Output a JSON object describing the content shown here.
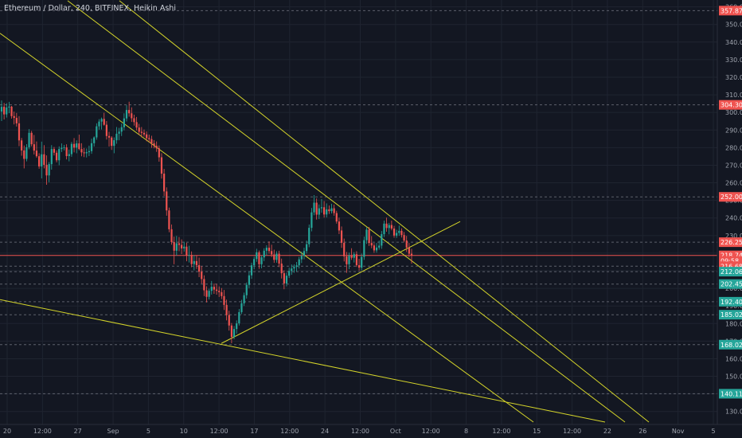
{
  "title": "Ethereum / Dollar, 240, BITFINEX, Heikin Ashi",
  "chart_data": {
    "type": "candlestick",
    "title": "Ethereum / Dollar, 240, BITFINEX, Heikin Ashi",
    "ylim": [
      124,
      363
    ],
    "y_ticks": [
      130,
      140,
      150,
      160,
      170,
      180,
      190,
      200,
      210,
      220,
      230,
      240,
      250,
      260,
      270,
      280,
      290,
      300,
      310,
      320,
      330,
      340,
      350,
      360
    ],
    "x_ticks": [
      "20",
      "12:00",
      "27",
      "Sep",
      "5",
      "10",
      "12:00",
      "17",
      "12:00",
      "24",
      "12:00",
      "Oct",
      "12:00",
      "8",
      "12:00",
      "15",
      "12:00",
      "22",
      "26",
      "Nov",
      "5"
    ],
    "grid": true,
    "colors": {
      "background": "#131722",
      "up": "#26a69a",
      "down": "#ef5350",
      "trendline": "#d4d42a",
      "grid": "#1f2430",
      "level_line": "#5d606b",
      "current_line": "#ef5350"
    },
    "price_levels": [
      {
        "label": "357.87",
        "value": 357.87,
        "color": "#ef5350"
      },
      {
        "label": "304.30",
        "value": 304.3,
        "color": "#ef5350"
      },
      {
        "label": "252.00",
        "value": 252.0,
        "color": "#ef5350"
      },
      {
        "label": "226.25",
        "value": 226.25,
        "color": "#ef5350"
      },
      {
        "label": "218.74",
        "value": 218.74,
        "color": "#ef5350",
        "current": true
      },
      {
        "label": "09:58",
        "value": 215.6,
        "color": "#ef5350",
        "text_only": true
      },
      {
        "label": "216.68",
        "value": 212.6,
        "color": "#ef5350"
      },
      {
        "label": "212.06",
        "value": 209.5,
        "color": "#26a69a"
      },
      {
        "label": "202.45",
        "value": 202.45,
        "color": "#26a69a"
      },
      {
        "label": "192.40",
        "value": 192.4,
        "color": "#26a69a"
      },
      {
        "label": "185.02",
        "value": 185.02,
        "color": "#26a69a"
      },
      {
        "label": "168.02",
        "value": 168.02,
        "color": "#26a69a"
      },
      {
        "label": "140.11",
        "value": 140.11,
        "color": "#26a69a"
      }
    ],
    "candles": [
      {
        "o": 300.5,
        "h": 306.8,
        "l": 295.1,
        "c": 303.2
      },
      {
        "o": 303.2,
        "h": 305.4,
        "l": 296.0,
        "c": 298.9
      },
      {
        "o": 298.9,
        "h": 305.2,
        "l": 297.1,
        "c": 302.8
      },
      {
        "o": 302.8,
        "h": 306.0,
        "l": 299.6,
        "c": 303.3
      },
      {
        "o": 303.3,
        "h": 303.7,
        "l": 296.5,
        "c": 297.9
      },
      {
        "o": 297.9,
        "h": 300.5,
        "l": 293.2,
        "c": 296.9
      },
      {
        "o": 296.9,
        "h": 299.7,
        "l": 292.0,
        "c": 293.8
      },
      {
        "o": 293.8,
        "h": 297.9,
        "l": 280.8,
        "c": 284.1
      },
      {
        "o": 284.1,
        "h": 285.5,
        "l": 275.4,
        "c": 278.4
      },
      {
        "o": 278.4,
        "h": 281.2,
        "l": 268.2,
        "c": 273.6
      },
      {
        "o": 273.6,
        "h": 282.0,
        "l": 272.2,
        "c": 280.2
      },
      {
        "o": 280.2,
        "h": 290.5,
        "l": 279.1,
        "c": 288.4
      },
      {
        "o": 288.4,
        "h": 289.5,
        "l": 280.7,
        "c": 281.9
      },
      {
        "o": 281.9,
        "h": 287.2,
        "l": 276.1,
        "c": 278.3
      },
      {
        "o": 278.3,
        "h": 283.5,
        "l": 274.2,
        "c": 275.1
      },
      {
        "o": 275.1,
        "h": 276.8,
        "l": 268.0,
        "c": 269.3
      },
      {
        "o": 269.3,
        "h": 283.4,
        "l": 262.5,
        "c": 276.2
      },
      {
        "o": 276.2,
        "h": 281.4,
        "l": 268.2,
        "c": 270.2
      },
      {
        "o": 270.2,
        "h": 275.6,
        "l": 258.9,
        "c": 264.2
      },
      {
        "o": 264.2,
        "h": 271.8,
        "l": 260.3,
        "c": 270.6
      },
      {
        "o": 270.6,
        "h": 281.4,
        "l": 267.5,
        "c": 279.2
      },
      {
        "o": 279.2,
        "h": 280.4,
        "l": 275.5,
        "c": 277.1
      },
      {
        "o": 277.1,
        "h": 278.4,
        "l": 271.6,
        "c": 272.8
      },
      {
        "o": 272.8,
        "h": 280.7,
        "l": 270.0,
        "c": 279.2
      },
      {
        "o": 279.2,
        "h": 282.4,
        "l": 277.5,
        "c": 279.9
      },
      {
        "o": 279.9,
        "h": 281.5,
        "l": 278.4,
        "c": 280.1
      },
      {
        "o": 280.1,
        "h": 281.9,
        "l": 273.3,
        "c": 275.2
      },
      {
        "o": 275.2,
        "h": 278.9,
        "l": 272.2,
        "c": 276.3
      },
      {
        "o": 276.3,
        "h": 283.2,
        "l": 274.8,
        "c": 282.1
      },
      {
        "o": 282.1,
        "h": 285.4,
        "l": 277.3,
        "c": 280.0
      },
      {
        "o": 280.0,
        "h": 284.1,
        "l": 276.8,
        "c": 282.4
      },
      {
        "o": 282.4,
        "h": 287.4,
        "l": 278.5,
        "c": 279.2
      },
      {
        "o": 279.2,
        "h": 282.5,
        "l": 275.1,
        "c": 277.3
      },
      {
        "o": 277.3,
        "h": 279.8,
        "l": 274.6,
        "c": 276.8
      },
      {
        "o": 276.8,
        "h": 279.5,
        "l": 274.4,
        "c": 277.4
      },
      {
        "o": 277.4,
        "h": 281.1,
        "l": 275.2,
        "c": 278.0
      },
      {
        "o": 278.0,
        "h": 285.1,
        "l": 276.5,
        "c": 282.5
      },
      {
        "o": 282.5,
        "h": 286.4,
        "l": 280.6,
        "c": 285.8
      },
      {
        "o": 285.8,
        "h": 293.8,
        "l": 284.5,
        "c": 292.1
      },
      {
        "o": 292.1,
        "h": 296.2,
        "l": 290.2,
        "c": 294.8
      },
      {
        "o": 294.8,
        "h": 297.1,
        "l": 290.3,
        "c": 296.3
      },
      {
        "o": 296.3,
        "h": 299.8,
        "l": 292.5,
        "c": 293.0
      },
      {
        "o": 293.0,
        "h": 295.1,
        "l": 284.6,
        "c": 286.6
      },
      {
        "o": 286.6,
        "h": 289.0,
        "l": 280.6,
        "c": 285.7
      },
      {
        "o": 285.7,
        "h": 286.5,
        "l": 278.7,
        "c": 281.0
      },
      {
        "o": 281.0,
        "h": 285.8,
        "l": 276.8,
        "c": 284.2
      },
      {
        "o": 284.2,
        "h": 291.7,
        "l": 282.2,
        "c": 287.9
      },
      {
        "o": 287.9,
        "h": 291.2,
        "l": 284.2,
        "c": 289.1
      },
      {
        "o": 289.1,
        "h": 293.6,
        "l": 286.6,
        "c": 291.6
      },
      {
        "o": 291.6,
        "h": 299.5,
        "l": 289.8,
        "c": 296.6
      },
      {
        "o": 296.6,
        "h": 304.1,
        "l": 294.9,
        "c": 301.4
      },
      {
        "o": 301.4,
        "h": 306.1,
        "l": 297.6,
        "c": 299.5
      },
      {
        "o": 299.5,
        "h": 302.9,
        "l": 294.6,
        "c": 296.7
      },
      {
        "o": 296.7,
        "h": 298.7,
        "l": 292.5,
        "c": 294.5
      },
      {
        "o": 294.5,
        "h": 297.4,
        "l": 289.8,
        "c": 291.4
      },
      {
        "o": 291.4,
        "h": 293.5,
        "l": 287.2,
        "c": 289.0
      },
      {
        "o": 289.0,
        "h": 291.7,
        "l": 285.8,
        "c": 288.4
      },
      {
        "o": 288.4,
        "h": 290.3,
        "l": 286.2,
        "c": 287.5
      },
      {
        "o": 287.5,
        "h": 289.2,
        "l": 283.6,
        "c": 285.4
      },
      {
        "o": 285.4,
        "h": 287.4,
        "l": 282.9,
        "c": 284.8
      },
      {
        "o": 284.8,
        "h": 286.7,
        "l": 279.9,
        "c": 282.4
      },
      {
        "o": 282.4,
        "h": 284.3,
        "l": 279.6,
        "c": 281.0
      },
      {
        "o": 281.0,
        "h": 283.5,
        "l": 277.6,
        "c": 279.6
      },
      {
        "o": 279.6,
        "h": 281.2,
        "l": 272.0,
        "c": 274.5
      },
      {
        "o": 274.5,
        "h": 276.8,
        "l": 262.4,
        "c": 265.2
      },
      {
        "o": 265.2,
        "h": 267.9,
        "l": 252.5,
        "c": 255.1
      },
      {
        "o": 255.1,
        "h": 257.4,
        "l": 241.3,
        "c": 244.3
      },
      {
        "o": 244.3,
        "h": 245.9,
        "l": 231.9,
        "c": 233.6
      },
      {
        "o": 233.6,
        "h": 236.3,
        "l": 224.8,
        "c": 226.3
      },
      {
        "o": 226.3,
        "h": 229.4,
        "l": 213.7,
        "c": 221.4
      },
      {
        "o": 221.4,
        "h": 229.8,
        "l": 218.6,
        "c": 225.6
      },
      {
        "o": 225.6,
        "h": 229.2,
        "l": 221.1,
        "c": 224.7
      },
      {
        "o": 224.7,
        "h": 227.8,
        "l": 219.5,
        "c": 222.7
      },
      {
        "o": 222.7,
        "h": 226.5,
        "l": 220.9,
        "c": 223.7
      },
      {
        "o": 223.7,
        "h": 225.9,
        "l": 215.4,
        "c": 218.7
      },
      {
        "o": 218.7,
        "h": 224.2,
        "l": 214.7,
        "c": 219.0
      },
      {
        "o": 219.0,
        "h": 221.0,
        "l": 212.0,
        "c": 213.8
      },
      {
        "o": 213.8,
        "h": 218.8,
        "l": 210.3,
        "c": 215.5
      },
      {
        "o": 215.5,
        "h": 218.8,
        "l": 211.0,
        "c": 213.2
      },
      {
        "o": 213.2,
        "h": 217.5,
        "l": 206.4,
        "c": 209.5
      },
      {
        "o": 209.5,
        "h": 212.7,
        "l": 202.8,
        "c": 205.3
      },
      {
        "o": 205.3,
        "h": 207.4,
        "l": 195.6,
        "c": 198.9
      },
      {
        "o": 198.9,
        "h": 201.2,
        "l": 192.0,
        "c": 195.2
      },
      {
        "o": 195.2,
        "h": 199.8,
        "l": 193.7,
        "c": 198.6
      },
      {
        "o": 198.6,
        "h": 204.2,
        "l": 196.5,
        "c": 200.9
      },
      {
        "o": 200.9,
        "h": 202.8,
        "l": 196.9,
        "c": 199.3
      },
      {
        "o": 199.3,
        "h": 202.6,
        "l": 196.4,
        "c": 198.6
      },
      {
        "o": 198.6,
        "h": 201.1,
        "l": 195.1,
        "c": 197.8
      },
      {
        "o": 197.8,
        "h": 200.2,
        "l": 193.9,
        "c": 195.6
      },
      {
        "o": 195.6,
        "h": 199.1,
        "l": 187.7,
        "c": 190.6
      },
      {
        "o": 190.6,
        "h": 193.6,
        "l": 181.8,
        "c": 184.8
      },
      {
        "o": 184.8,
        "h": 187.3,
        "l": 176.0,
        "c": 178.9
      },
      {
        "o": 178.9,
        "h": 180.3,
        "l": 168.8,
        "c": 172.4
      },
      {
        "o": 172.4,
        "h": 178.6,
        "l": 171.0,
        "c": 176.9
      },
      {
        "o": 176.9,
        "h": 181.8,
        "l": 174.3,
        "c": 180.1
      },
      {
        "o": 180.1,
        "h": 188.3,
        "l": 178.9,
        "c": 186.5
      },
      {
        "o": 186.5,
        "h": 193.5,
        "l": 185.4,
        "c": 191.5
      },
      {
        "o": 191.5,
        "h": 197.6,
        "l": 190.0,
        "c": 196.1
      },
      {
        "o": 196.1,
        "h": 203.3,
        "l": 194.2,
        "c": 202.0
      },
      {
        "o": 202.0,
        "h": 209.7,
        "l": 200.1,
        "c": 207.4
      },
      {
        "o": 207.4,
        "h": 214.6,
        "l": 205.4,
        "c": 213.1
      },
      {
        "o": 213.1,
        "h": 218.0,
        "l": 210.9,
        "c": 216.7
      },
      {
        "o": 216.7,
        "h": 222.5,
        "l": 215.1,
        "c": 220.5
      },
      {
        "o": 220.5,
        "h": 221.5,
        "l": 211.1,
        "c": 213.7
      },
      {
        "o": 213.7,
        "h": 218.6,
        "l": 211.4,
        "c": 217.6
      },
      {
        "o": 217.6,
        "h": 222.8,
        "l": 215.5,
        "c": 221.4
      },
      {
        "o": 221.4,
        "h": 224.5,
        "l": 218.9,
        "c": 223.1
      },
      {
        "o": 223.1,
        "h": 226.7,
        "l": 219.7,
        "c": 221.2
      },
      {
        "o": 221.2,
        "h": 224.8,
        "l": 217.8,
        "c": 219.3
      },
      {
        "o": 219.3,
        "h": 222.0,
        "l": 214.5,
        "c": 216.2
      },
      {
        "o": 216.2,
        "h": 221.1,
        "l": 214.6,
        "c": 219.7
      },
      {
        "o": 219.7,
        "h": 221.4,
        "l": 212.1,
        "c": 214.1
      },
      {
        "o": 214.1,
        "h": 216.9,
        "l": 205.6,
        "c": 208.6
      },
      {
        "o": 208.6,
        "h": 210.3,
        "l": 199.5,
        "c": 202.8
      },
      {
        "o": 202.8,
        "h": 208.9,
        "l": 201.1,
        "c": 207.2
      },
      {
        "o": 207.2,
        "h": 211.7,
        "l": 205.9,
        "c": 209.9
      },
      {
        "o": 209.9,
        "h": 213.6,
        "l": 207.7,
        "c": 211.3
      },
      {
        "o": 211.3,
        "h": 213.6,
        "l": 208.9,
        "c": 212.2
      },
      {
        "o": 212.2,
        "h": 215.0,
        "l": 209.6,
        "c": 213.1
      },
      {
        "o": 213.1,
        "h": 217.9,
        "l": 211.3,
        "c": 216.5
      },
      {
        "o": 216.5,
        "h": 220.9,
        "l": 214.4,
        "c": 218.5
      },
      {
        "o": 218.5,
        "h": 223.1,
        "l": 216.5,
        "c": 221.2
      },
      {
        "o": 221.2,
        "h": 227.2,
        "l": 219.8,
        "c": 225.1
      },
      {
        "o": 225.1,
        "h": 236.3,
        "l": 223.4,
        "c": 234.4
      },
      {
        "o": 234.4,
        "h": 245.7,
        "l": 232.4,
        "c": 243.2
      },
      {
        "o": 243.2,
        "h": 253.0,
        "l": 241.6,
        "c": 248.7
      },
      {
        "o": 248.7,
        "h": 251.1,
        "l": 239.1,
        "c": 241.9
      },
      {
        "o": 241.9,
        "h": 247.7,
        "l": 239.4,
        "c": 245.5
      },
      {
        "o": 245.5,
        "h": 250.8,
        "l": 243.0,
        "c": 246.1
      },
      {
        "o": 246.1,
        "h": 249.6,
        "l": 240.2,
        "c": 242.0
      },
      {
        "o": 242.0,
        "h": 248.3,
        "l": 240.3,
        "c": 244.9
      },
      {
        "o": 244.9,
        "h": 247.1,
        "l": 242.3,
        "c": 243.9
      },
      {
        "o": 243.9,
        "h": 248.1,
        "l": 242.6,
        "c": 245.5
      },
      {
        "o": 245.5,
        "h": 247.6,
        "l": 241.3,
        "c": 242.8
      },
      {
        "o": 242.8,
        "h": 244.1,
        "l": 236.8,
        "c": 238.0
      },
      {
        "o": 238.0,
        "h": 240.2,
        "l": 230.8,
        "c": 232.9
      },
      {
        "o": 232.9,
        "h": 235.2,
        "l": 223.0,
        "c": 225.9
      },
      {
        "o": 225.9,
        "h": 228.3,
        "l": 215.3,
        "c": 218.2
      },
      {
        "o": 218.2,
        "h": 220.7,
        "l": 208.8,
        "c": 213.7
      },
      {
        "o": 213.7,
        "h": 220.3,
        "l": 210.9,
        "c": 218.6
      },
      {
        "o": 218.6,
        "h": 222.8,
        "l": 216.2,
        "c": 217.4
      },
      {
        "o": 217.4,
        "h": 220.6,
        "l": 214.7,
        "c": 219.4
      },
      {
        "o": 219.4,
        "h": 221.1,
        "l": 212.2,
        "c": 213.2
      },
      {
        "o": 213.2,
        "h": 216.8,
        "l": 210.1,
        "c": 211.8
      },
      {
        "o": 211.8,
        "h": 219.8,
        "l": 210.2,
        "c": 217.9
      },
      {
        "o": 217.9,
        "h": 229.4,
        "l": 216.2,
        "c": 227.4
      },
      {
        "o": 227.4,
        "h": 234.6,
        "l": 225.3,
        "c": 233.4
      },
      {
        "o": 233.4,
        "h": 234.9,
        "l": 224.1,
        "c": 225.8
      },
      {
        "o": 225.8,
        "h": 229.7,
        "l": 222.8,
        "c": 224.4
      },
      {
        "o": 224.4,
        "h": 225.7,
        "l": 220.2,
        "c": 221.6
      },
      {
        "o": 221.6,
        "h": 225.8,
        "l": 220.3,
        "c": 223.2
      },
      {
        "o": 223.2,
        "h": 227.2,
        "l": 222.0,
        "c": 224.3
      },
      {
        "o": 224.3,
        "h": 232.6,
        "l": 222.5,
        "c": 230.8
      },
      {
        "o": 230.8,
        "h": 238.5,
        "l": 229.2,
        "c": 236.8
      },
      {
        "o": 236.8,
        "h": 240.2,
        "l": 232.2,
        "c": 234.3
      },
      {
        "o": 234.3,
        "h": 237.2,
        "l": 230.7,
        "c": 236.0
      },
      {
        "o": 236.0,
        "h": 238.5,
        "l": 233.0,
        "c": 234.0
      },
      {
        "o": 234.0,
        "h": 235.5,
        "l": 228.8,
        "c": 230.0
      },
      {
        "o": 230.0,
        "h": 233.3,
        "l": 228.7,
        "c": 231.5
      },
      {
        "o": 231.5,
        "h": 235.7,
        "l": 229.9,
        "c": 232.7
      },
      {
        "o": 232.7,
        "h": 234.1,
        "l": 228.9,
        "c": 230.3
      },
      {
        "o": 230.3,
        "h": 232.0,
        "l": 226.2,
        "c": 227.2
      },
      {
        "o": 227.2,
        "h": 229.8,
        "l": 220.7,
        "c": 223.2
      },
      {
        "o": 223.2,
        "h": 225.8,
        "l": 217.7,
        "c": 219.7
      },
      {
        "o": 219.7,
        "h": 222.4,
        "l": 214.0,
        "c": 218.7
      }
    ],
    "trendlines": [
      {
        "x1": 150,
        "y1": 363.5,
        "x2": 815,
        "y2": 124.0
      },
      {
        "x1": 85,
        "y1": 363.5,
        "x2": 785,
        "y2": 124.0
      },
      {
        "x1": 0,
        "y1": 345.0,
        "x2": 670,
        "y2": 124.0
      },
      {
        "x1": 0,
        "y1": 193.6,
        "x2": 760,
        "y2": 124.0
      },
      {
        "x1": 278,
        "y1": 168.7,
        "x2": 578,
        "y2": 238.0
      }
    ]
  }
}
